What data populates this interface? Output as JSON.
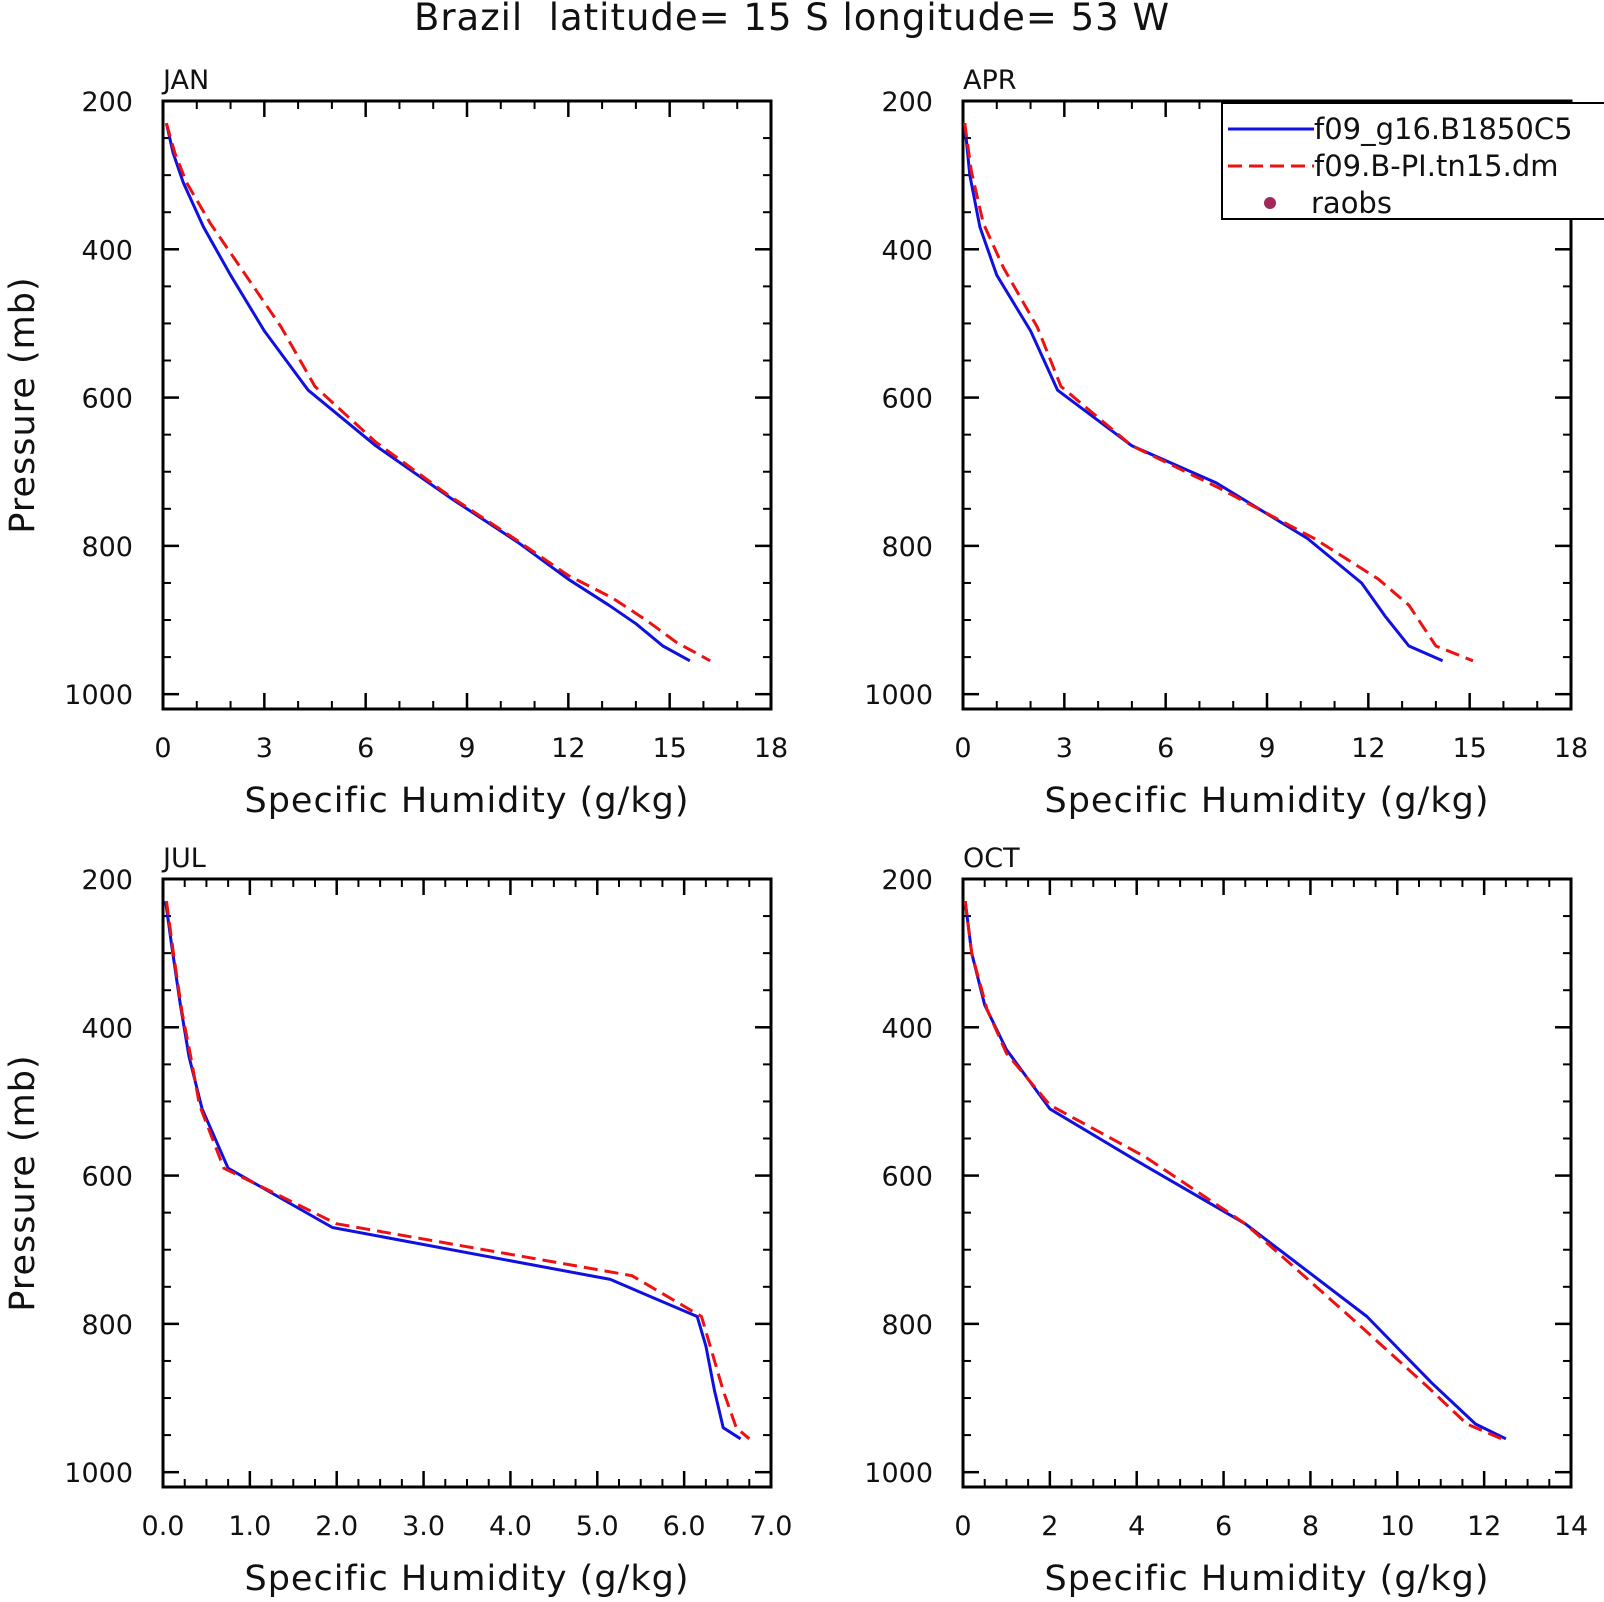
{
  "figure_title": "Brazil  latitude= 15 S longitude= 53 W",
  "legend": [
    {
      "label": "f09_g16.B1850C5",
      "color": "#1010e0",
      "style": "solid"
    },
    {
      "label": "f09.B-PI.tn15.dm",
      "color": "#ee1111",
      "style": "dashed"
    },
    {
      "label": "raobs",
      "color": "#a0285a",
      "style": "dot"
    }
  ],
  "chart_data": [
    {
      "type": "line",
      "title": "JAN",
      "xlabel": "Specific Humidity (g/kg)",
      "ylabel": "Pressure (mb)",
      "xlim": [
        0,
        18
      ],
      "ylim": [
        200,
        1020
      ],
      "y_inverted": true,
      "xticks": [
        "0",
        "3",
        "6",
        "9",
        "12",
        "15",
        "18"
      ],
      "yticks": [
        "200",
        "400",
        "600",
        "800",
        "1000"
      ],
      "series": [
        {
          "name": "f09_g16.B1850C5",
          "x": [
            0.1,
            0.3,
            0.6,
            1.2,
            2.0,
            3.0,
            4.3,
            6.3,
            8.5,
            10.5,
            12.0,
            13.2,
            14.0,
            14.8,
            15.6
          ],
          "y": [
            230,
            270,
            310,
            370,
            435,
            510,
            590,
            665,
            735,
            795,
            845,
            880,
            905,
            935,
            955
          ]
        },
        {
          "name": "f09.B-PI.tn15.dm",
          "x": [
            0.1,
            0.35,
            0.7,
            1.4,
            2.3,
            3.5,
            4.5,
            6.3,
            8.4,
            10.4,
            12.0,
            13.3,
            14.3,
            15.2,
            16.2
          ],
          "y": [
            230,
            270,
            310,
            365,
            425,
            505,
            585,
            660,
            730,
            790,
            840,
            870,
            900,
            930,
            955
          ]
        }
      ]
    },
    {
      "type": "line",
      "title": "APR",
      "xlabel": "Specific Humidity (g/kg)",
      "ylabel": "",
      "xlim": [
        0,
        18
      ],
      "ylim": [
        200,
        1020
      ],
      "y_inverted": true,
      "xticks": [
        "0",
        "3",
        "6",
        "9",
        "12",
        "15",
        "18"
      ],
      "yticks": [
        "200",
        "400",
        "600",
        "800",
        "1000"
      ],
      "series": [
        {
          "name": "f09_g16.B1850C5",
          "x": [
            0.05,
            0.2,
            0.5,
            1.0,
            2.0,
            2.8,
            5.0,
            7.5,
            10.2,
            11.8,
            12.5,
            13.2,
            14.2
          ],
          "y": [
            230,
            300,
            370,
            435,
            510,
            590,
            665,
            715,
            790,
            850,
            895,
            935,
            955
          ]
        },
        {
          "name": "f09.B-PI.tn15.dm",
          "x": [
            0.05,
            0.25,
            0.6,
            1.2,
            2.2,
            2.9,
            5.0,
            7.5,
            10.4,
            12.3,
            13.2,
            14.0,
            15.1
          ],
          "y": [
            230,
            295,
            365,
            425,
            505,
            585,
            665,
            720,
            790,
            845,
            880,
            935,
            955
          ]
        }
      ]
    },
    {
      "type": "line",
      "title": "JUL",
      "xlabel": "Specific Humidity (g/kg)",
      "ylabel": "Pressure (mb)",
      "xlim": [
        0,
        7
      ],
      "ylim": [
        200,
        1020
      ],
      "y_inverted": true,
      "xticks": [
        "0.0",
        "1.0",
        "2.0",
        "3.0",
        "4.0",
        "5.0",
        "6.0",
        "7.0"
      ],
      "yticks": [
        "200",
        "400",
        "600",
        "800",
        "1000"
      ],
      "series": [
        {
          "name": "f09_g16.B1850C5",
          "x": [
            0.03,
            0.1,
            0.2,
            0.3,
            0.45,
            0.75,
            1.95,
            5.15,
            6.15,
            6.25,
            6.35,
            6.45,
            6.65
          ],
          "y": [
            230,
            290,
            370,
            440,
            510,
            590,
            670,
            740,
            790,
            830,
            890,
            940,
            955
          ]
        },
        {
          "name": "f09.B-PI.tn15.dm",
          "x": [
            0.04,
            0.12,
            0.22,
            0.32,
            0.42,
            0.7,
            2.0,
            5.4,
            6.2,
            6.3,
            6.45,
            6.6,
            6.75
          ],
          "y": [
            230,
            300,
            380,
            440,
            505,
            590,
            665,
            735,
            790,
            830,
            890,
            940,
            955
          ]
        }
      ]
    },
    {
      "type": "line",
      "title": "OCT",
      "xlabel": "Specific Humidity (g/kg)",
      "ylabel": "",
      "xlim": [
        0,
        14
      ],
      "ylim": [
        200,
        1020
      ],
      "y_inverted": true,
      "xticks": [
        "0",
        "2",
        "4",
        "6",
        "8",
        "10",
        "12",
        "14"
      ],
      "yticks": [
        "200",
        "400",
        "600",
        "800",
        "1000"
      ],
      "series": [
        {
          "name": "f09_g16.B1850C5",
          "x": [
            0.05,
            0.2,
            0.5,
            1.0,
            2.0,
            4.0,
            6.5,
            9.3,
            10.8,
            11.8,
            12.5
          ],
          "y": [
            230,
            300,
            370,
            430,
            510,
            580,
            665,
            790,
            880,
            935,
            955
          ]
        },
        {
          "name": "f09.B-PI.tn15.dm",
          "x": [
            0.05,
            0.2,
            0.55,
            1.0,
            2.0,
            4.2,
            6.5,
            9.0,
            10.7,
            11.6,
            12.4
          ],
          "y": [
            230,
            300,
            375,
            435,
            505,
            575,
            665,
            795,
            885,
            935,
            955
          ]
        }
      ]
    }
  ]
}
